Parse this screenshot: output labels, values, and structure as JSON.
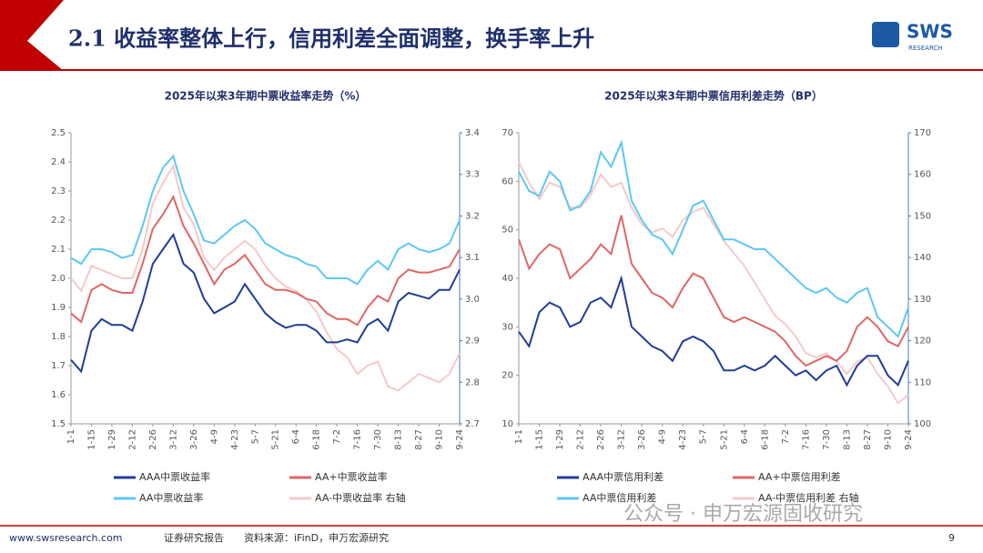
{
  "header": {
    "title": "2.1 收益率整体上行，信用利差全面调整，换手率上升"
  },
  "logo": {
    "name": "SWS",
    "sub": "RESEARCH"
  },
  "chart_data": [
    {
      "type": "line",
      "title": "2025年以来3年期中票收益率走势（%）",
      "categories": [
        "1-1",
        null,
        "1-15",
        null,
        "1-29",
        null,
        "2-12",
        null,
        "2-26",
        null,
        "3-12",
        null,
        "3-26",
        null,
        "4-9",
        null,
        "4-23",
        null,
        "5-7",
        null,
        "5-21",
        null,
        "6-4",
        null,
        "6-18",
        null,
        "7-2",
        null,
        "7-16",
        null,
        "7-30",
        null,
        "8-13",
        null,
        "8-27",
        null,
        "9-10",
        null,
        "9-24"
      ],
      "ylim": [
        1.5,
        2.5
      ],
      "yticks": [
        1.5,
        1.6,
        1.7,
        1.8,
        1.9,
        {
          "value": 2,
          "label": "2.0"
        },
        2.1,
        2.2,
        2.3,
        2.4,
        2.5
      ],
      "y2lim": [
        2.7,
        3.4
      ],
      "y2ticks": [
        2.7,
        2.8,
        2.9,
        {
          "value": 3,
          "label": "3.0"
        },
        3.1,
        3.2,
        3.3,
        3.4
      ],
      "series": [
        {
          "name": "AAA中票收益率",
          "color": "#1f3d99",
          "values": [
            1.72,
            1.68,
            1.82,
            1.86,
            1.84,
            1.84,
            1.82,
            1.92,
            2.05,
            2.1,
            2.15,
            2.05,
            2.02,
            1.93,
            1.88,
            1.9,
            1.92,
            1.98,
            1.93,
            1.88,
            1.85,
            1.83,
            1.84,
            1.84,
            1.82,
            1.78,
            1.78,
            1.79,
            1.78,
            1.84,
            1.86,
            1.82,
            1.92,
            1.95,
            1.94,
            1.93,
            1.96,
            1.96,
            2.03
          ]
        },
        {
          "name": "AA+中票收益率",
          "color": "#e06666",
          "values": [
            1.88,
            1.85,
            1.96,
            1.98,
            1.96,
            1.95,
            1.95,
            2.05,
            2.17,
            2.22,
            2.28,
            2.18,
            2.12,
            2.05,
            1.98,
            2.03,
            2.05,
            2.08,
            2.03,
            1.98,
            1.96,
            1.96,
            1.95,
            1.93,
            1.92,
            1.88,
            1.86,
            1.86,
            1.84,
            1.9,
            1.94,
            1.92,
            2.0,
            2.03,
            2.02,
            2.02,
            2.03,
            2.04,
            2.1
          ]
        },
        {
          "name": "AA中票收益率",
          "color": "#5bc8f5",
          "values": [
            2.07,
            2.05,
            2.1,
            2.1,
            2.09,
            2.07,
            2.08,
            2.18,
            2.3,
            2.38,
            2.42,
            2.3,
            2.22,
            2.13,
            2.12,
            2.15,
            2.18,
            2.2,
            2.17,
            2.12,
            2.1,
            2.08,
            2.07,
            2.05,
            2.04,
            2.0,
            2.0,
            2.0,
            1.98,
            2.03,
            2.06,
            2.03,
            2.1,
            2.12,
            2.1,
            2.09,
            2.1,
            2.12,
            2.2
          ]
        },
        {
          "name": "AA-中票收益率 右轴",
          "color": "#f6c9c9",
          "axis": "y2",
          "values": [
            3.05,
            3.02,
            3.08,
            3.07,
            3.06,
            3.05,
            3.05,
            3.12,
            3.23,
            3.28,
            3.32,
            3.22,
            3.18,
            3.1,
            3.07,
            3.1,
            3.12,
            3.14,
            3.12,
            3.08,
            3.05,
            3.03,
            3.02,
            3.0,
            2.97,
            2.92,
            2.88,
            2.86,
            2.82,
            2.84,
            2.85,
            2.79,
            2.78,
            2.8,
            2.82,
            2.81,
            2.8,
            2.82,
            2.87
          ]
        }
      ]
    },
    {
      "type": "line",
      "title": "2025年以来3年期中票信用利差走势（BP）",
      "categories": [
        "1-1",
        null,
        "1-15",
        null,
        "1-29",
        null,
        "2-12",
        null,
        "2-26",
        null,
        "3-12",
        null,
        "3-26",
        null,
        "4-9",
        null,
        "4-23",
        null,
        "5-7",
        null,
        "5-21",
        null,
        "6-4",
        null,
        "6-18",
        null,
        "7-2",
        null,
        "7-16",
        null,
        "7-30",
        null,
        "8-13",
        null,
        "8-27",
        null,
        "9-10",
        null,
        "9-24"
      ],
      "ylim": [
        10,
        70
      ],
      "yticks": [
        10,
        20,
        30,
        40,
        50,
        60,
        70
      ],
      "y2lim": [
        100,
        170
      ],
      "y2ticks": [
        100,
        110,
        120,
        130,
        140,
        150,
        160,
        170
      ],
      "series": [
        {
          "name": "AAA中票信用利差",
          "color": "#1f3d99",
          "values": [
            29,
            26,
            33,
            35,
            34,
            30,
            31,
            35,
            36,
            34,
            40,
            30,
            28,
            26,
            25,
            23,
            27,
            28,
            27,
            25,
            21,
            21,
            22,
            21,
            22,
            24,
            22,
            20,
            21,
            19,
            21,
            22,
            18,
            22,
            24,
            24,
            20,
            18,
            23
          ]
        },
        {
          "name": "AA+中票信用利差",
          "color": "#e06666",
          "values": [
            48,
            42,
            45,
            47,
            46,
            40,
            42,
            44,
            47,
            45,
            53,
            43,
            40,
            37,
            36,
            34,
            38,
            41,
            40,
            36,
            32,
            31,
            32,
            31,
            30,
            29,
            27,
            24,
            22,
            23,
            24,
            23,
            25,
            30,
            32,
            30,
            27,
            26,
            30
          ]
        },
        {
          "name": "AA中票信用利差",
          "color": "#5bc8f5",
          "values": [
            62,
            58,
            57,
            62,
            60,
            54,
            55,
            58,
            66,
            63,
            68,
            56,
            52,
            49,
            48,
            45,
            50,
            55,
            56,
            52,
            48,
            48,
            47,
            46,
            46,
            44,
            42,
            40,
            38,
            37,
            38,
            36,
            35,
            37,
            38,
            32,
            30,
            28,
            34
          ]
        },
        {
          "name": "AA-中票信用利差 右轴",
          "color": "#f6c9c9",
          "axis": "y2",
          "values": [
            163,
            158,
            154,
            158,
            157,
            152,
            152,
            155,
            160,
            157,
            158,
            152,
            148,
            146,
            147,
            145,
            149,
            151,
            152,
            148,
            144,
            141,
            138,
            134,
            130,
            126,
            124,
            121,
            117,
            116,
            117,
            115,
            112,
            115,
            116,
            112,
            109,
            105,
            107
          ]
        }
      ]
    }
  ],
  "footer": {
    "site": "www.swsresearch.com",
    "report": "证券研究报告",
    "source": "资料来源：iFinD，申万宏源研究",
    "watermark": "公众号 · 申万宏源固收研究",
    "page": "9"
  }
}
